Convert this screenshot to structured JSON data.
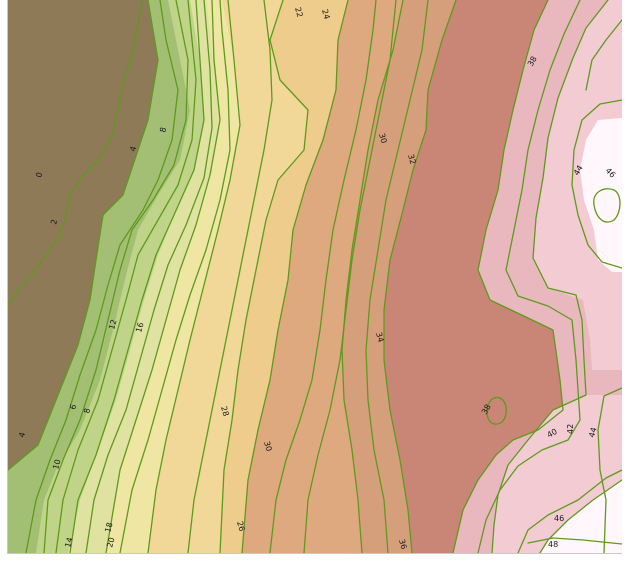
{
  "map": {
    "colors": {
      "band_0": "#8e7a56",
      "band_4": "#a3bf73",
      "band_8": "#bfd488",
      "band_12": "#e0e2a2",
      "band_16": "#efe6a3",
      "band_20": "#f1d898",
      "band_24": "#eecc8c",
      "band_28": "#dfa97f",
      "band_32": "#d69f7c",
      "band_34": "#c98677",
      "band_38": "#e9b8bf",
      "band_42": "#f2ccd2",
      "band_46": "#fff7fb",
      "contour_line": "#5e9a1c",
      "label_text": "#1a1a1a",
      "frame_border": "#c8c8c8"
    },
    "contour_labels": [
      {
        "id": "0",
        "text": "0"
      },
      {
        "id": "2",
        "text": "2"
      },
      {
        "id": "4a",
        "text": "4"
      },
      {
        "id": "4b",
        "text": "4"
      },
      {
        "id": "6",
        "text": "6"
      },
      {
        "id": "8a",
        "text": "8"
      },
      {
        "id": "8b",
        "text": "8"
      },
      {
        "id": "10",
        "text": "10"
      },
      {
        "id": "12",
        "text": "12"
      },
      {
        "id": "14",
        "text": "14"
      },
      {
        "id": "16",
        "text": "16"
      },
      {
        "id": "18",
        "text": "18"
      },
      {
        "id": "20",
        "text": "20"
      },
      {
        "id": "22",
        "text": "22"
      },
      {
        "id": "24",
        "text": "24"
      },
      {
        "id": "26",
        "text": "26"
      },
      {
        "id": "28",
        "text": "28"
      },
      {
        "id": "30a",
        "text": "30"
      },
      {
        "id": "30b",
        "text": "30"
      },
      {
        "id": "32",
        "text": "32"
      },
      {
        "id": "34",
        "text": "34"
      },
      {
        "id": "36",
        "text": "36"
      },
      {
        "id": "38a",
        "text": "38"
      },
      {
        "id": "38b",
        "text": "38"
      },
      {
        "id": "40",
        "text": "40"
      },
      {
        "id": "42",
        "text": "42"
      },
      {
        "id": "44a",
        "text": "44"
      },
      {
        "id": "44b",
        "text": "44"
      },
      {
        "id": "46a",
        "text": "46"
      },
      {
        "id": "46b",
        "text": "46"
      },
      {
        "id": "48",
        "text": "48"
      }
    ]
  }
}
